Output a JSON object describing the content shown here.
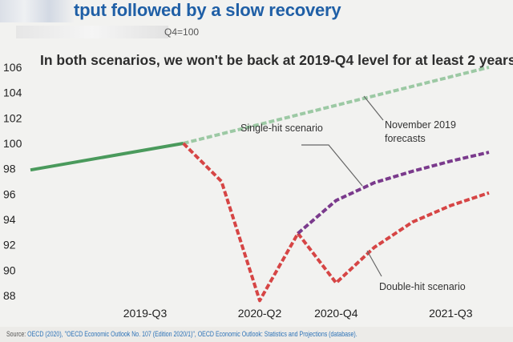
{
  "title": "A ... output followed by a slow recovery",
  "title_visible": "tput followed by a slow recovery",
  "subtitle_visible": "Q4=100",
  "headline": "In both scenarios, we won't be back at 2019-Q4 level for at least 2 years",
  "source": {
    "prefix": "Source: ",
    "link1": "OECD (2020), \"OECD Economic Outlook No. 107 (Edition 2020/1)\", OECD Economic Outlook: Statistics and Projections (database)."
  },
  "colors": {
    "actual": "#4a9a5c",
    "forecast": "#9cc9a4",
    "double_hit": "#d64545",
    "single_hit": "#7a3a8c",
    "title": "#1f5fa6"
  },
  "chart_data": {
    "type": "line",
    "x": [
      "2018-Q4",
      "2019-Q1",
      "2019-Q2",
      "2019-Q3",
      "2019-Q4",
      "2020-Q1",
      "2020-Q2",
      "2020-Q3",
      "2020-Q4",
      "2021-Q1",
      "2021-Q2",
      "2021-Q3",
      "2021-Q4"
    ],
    "x_tick_labels": [
      "2019-Q3",
      "2020-Q2",
      "2020-Q4",
      "2021-Q3"
    ],
    "x_tick_positions": [
      "2019-Q3",
      "2020-Q2",
      "2020-Q4",
      "2021-Q3"
    ],
    "ylim": [
      88,
      106
    ],
    "y_ticks": [
      88,
      90,
      92,
      94,
      96,
      98,
      100,
      102,
      104,
      106
    ],
    "grid": false,
    "series": [
      {
        "style": "solid",
        "color_key": "actual",
        "points": [
          [
            "2018-Q4",
            97.9
          ],
          [
            "2019-Q4",
            100.0
          ]
        ]
      },
      {
        "name": "November 2019 forecasts",
        "style": "dashed",
        "color_key": "forecast",
        "points": [
          [
            "2019-Q4",
            100.0
          ],
          [
            "2021-Q4",
            106.0
          ]
        ]
      },
      {
        "name": "Double-hit scenario",
        "style": "dashed",
        "color_key": "double_hit",
        "points": [
          [
            "2019-Q4",
            100.0
          ],
          [
            "2020-Q1",
            97.0
          ],
          [
            "2020-Q2",
            87.6
          ],
          [
            "2020-Q3",
            92.9
          ],
          [
            "2020-Q4",
            89.0
          ],
          [
            "2021-Q1",
            91.8
          ],
          [
            "2021-Q2",
            93.8
          ],
          [
            "2021-Q3",
            95.1
          ],
          [
            "2021-Q4",
            96.1
          ]
        ]
      },
      {
        "name": "Single-hit scenario",
        "style": "dashed",
        "color_key": "single_hit",
        "points": [
          [
            "2020-Q3",
            92.9
          ],
          [
            "2020-Q4",
            95.5
          ],
          [
            "2021-Q1",
            96.9
          ],
          [
            "2021-Q2",
            97.8
          ],
          [
            "2021-Q3",
            98.6
          ],
          [
            "2021-Q4",
            99.3
          ]
        ]
      }
    ],
    "annotations": [
      {
        "text": "Single-hit scenario",
        "series": "Single-hit scenario"
      },
      {
        "text": "November 2019",
        "text2": "forecasts",
        "series": "November 2019 forecasts"
      },
      {
        "text": "Double-hit scenario",
        "series": "Double-hit scenario"
      }
    ]
  }
}
